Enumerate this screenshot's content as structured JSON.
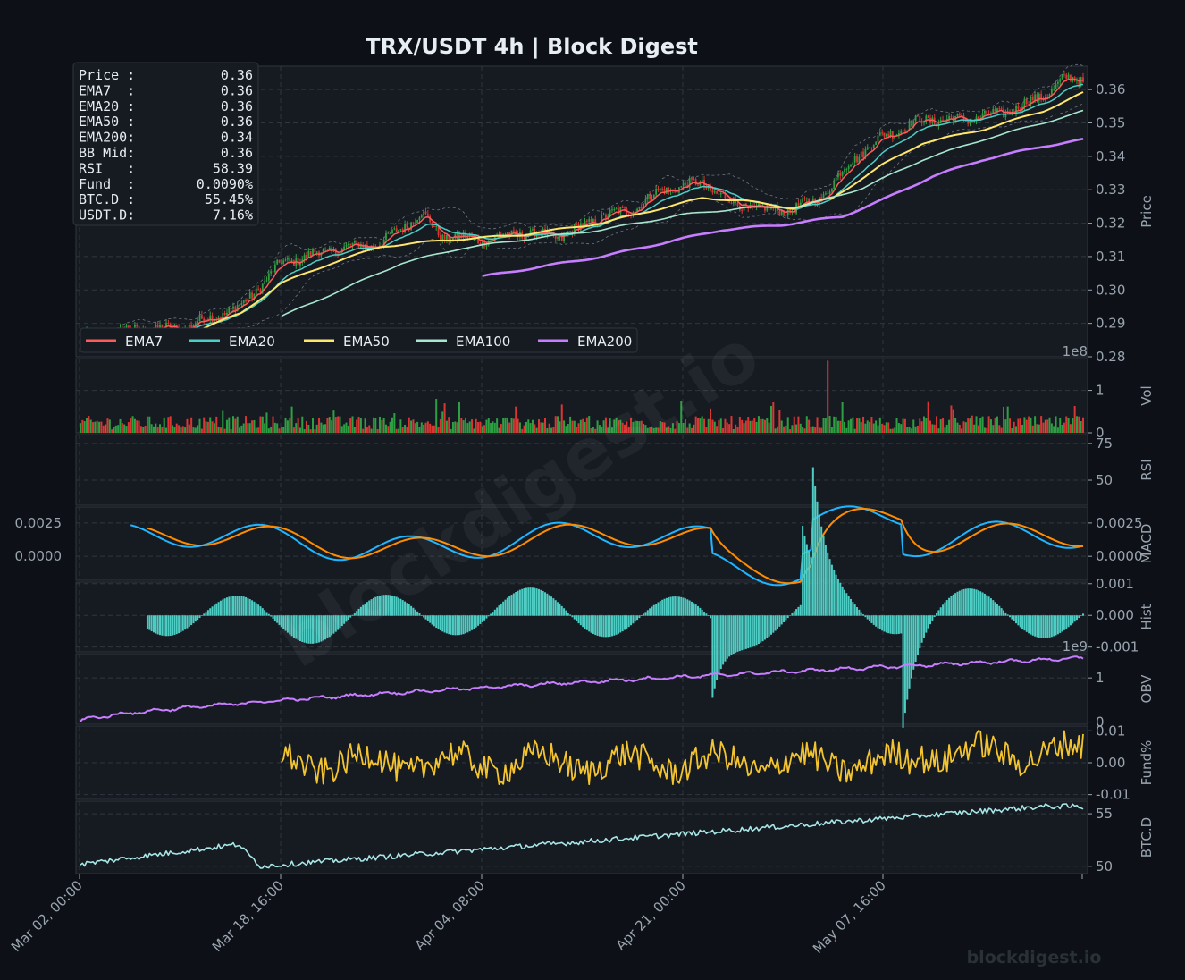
{
  "title": "TRX/USDT  4h  |  Block Digest",
  "watermark_diagonal": "blockdigest.io",
  "watermark_corner": "blockdigest.io",
  "colors": {
    "background": "#0d1117",
    "panel": "#161b22",
    "grid": "#30363d",
    "ema7": "#ff5a5a",
    "ema20": "#4ecdc4",
    "ema50": "#ffe66d",
    "ema100": "#a8e6cf",
    "ema200": "#c77dff",
    "up": "#2ea043",
    "down": "#da3633",
    "rsi": "#f4c430",
    "macd": "#1fb6ff",
    "signal": "#ff8c00",
    "hist": "#4ecdc4",
    "obv": "#c77dff",
    "fund": "#f4c430",
    "btcd": "#a8e6e6"
  },
  "info_box": [
    {
      "label": "Price :",
      "value": "0.36"
    },
    {
      "label": "EMA7  :",
      "value": "0.36"
    },
    {
      "label": "EMA20 :",
      "value": "0.36"
    },
    {
      "label": "EMA50 :",
      "value": "0.36"
    },
    {
      "label": "EMA200:",
      "value": "0.34"
    },
    {
      "label": "BB Mid:",
      "value": "0.36"
    },
    {
      "label": "RSI   :",
      "value": "58.39"
    },
    {
      "label": "Fund  :",
      "value": "0.0090%"
    },
    {
      "label": "BTC.D :",
      "value": "55.45%"
    },
    {
      "label": "USDT.D:",
      "value": "7.16%"
    }
  ],
  "legend": [
    {
      "label": "EMA7",
      "color": "#ff5a5a"
    },
    {
      "label": "EMA20",
      "color": "#4ecdc4"
    },
    {
      "label": "EMA50",
      "color": "#ffe66d"
    },
    {
      "label": "EMA100",
      "color": "#a8e6cf"
    },
    {
      "label": "EMA200",
      "color": "#c77dff"
    }
  ],
  "x_ticks": [
    "Mar 02, 00:00",
    "Mar 18, 16:00",
    "Apr 04, 08:00",
    "Apr 21, 00:00",
    "May 07, 16:00"
  ],
  "chart_data": [
    {
      "panel": "Price",
      "type": "candlestick",
      "ylabel": "Price",
      "ylim": [
        0.28,
        0.367
      ],
      "yticks": [
        "0.28",
        "0.29",
        "0.30",
        "0.31",
        "0.32",
        "0.33",
        "0.34",
        "0.35",
        "0.36"
      ],
      "x_range": [
        "Mar 02, 00:00",
        "May 22"
      ],
      "close_path": [
        [
          0,
          0.2855
        ],
        [
          0.05,
          0.288
        ],
        [
          0.1,
          0.2885
        ],
        [
          0.16,
          0.295
        ],
        [
          0.2,
          0.308
        ],
        [
          0.25,
          0.312
        ],
        [
          0.3,
          0.314
        ],
        [
          0.34,
          0.323
        ],
        [
          0.36,
          0.316
        ],
        [
          0.4,
          0.315
        ],
        [
          0.44,
          0.317
        ],
        [
          0.48,
          0.316
        ],
        [
          0.52,
          0.322
        ],
        [
          0.55,
          0.324
        ],
        [
          0.58,
          0.33
        ],
        [
          0.62,
          0.332
        ],
        [
          0.65,
          0.326
        ],
        [
          0.68,
          0.324
        ],
        [
          0.71,
          0.324
        ],
        [
          0.74,
          0.328
        ],
        [
          0.77,
          0.339
        ],
        [
          0.8,
          0.346
        ],
        [
          0.84,
          0.351
        ],
        [
          0.88,
          0.351
        ],
        [
          0.92,
          0.353
        ],
        [
          0.96,
          0.358
        ],
        [
          0.98,
          0.363
        ],
        [
          1.0,
          0.363
        ]
      ],
      "ema50_path": [
        [
          0.1,
          0.286
        ],
        [
          0.16,
          0.293
        ],
        [
          0.2,
          0.302
        ],
        [
          0.25,
          0.308
        ],
        [
          0.3,
          0.313
        ],
        [
          0.36,
          0.3148
        ],
        [
          0.44,
          0.3165
        ],
        [
          0.52,
          0.32
        ],
        [
          0.58,
          0.3245
        ],
        [
          0.62,
          0.3275
        ],
        [
          0.66,
          0.3268
        ],
        [
          0.71,
          0.3245
        ],
        [
          0.75,
          0.3275
        ],
        [
          0.8,
          0.3375
        ],
        [
          0.84,
          0.344
        ],
        [
          0.9,
          0.348
        ],
        [
          0.96,
          0.3535
        ],
        [
          1.0,
          0.359
        ]
      ],
      "ema100_path": [
        [
          0.2,
          0.292
        ],
        [
          0.26,
          0.3
        ],
        [
          0.32,
          0.308
        ],
        [
          0.38,
          0.3125
        ],
        [
          0.44,
          0.315
        ],
        [
          0.52,
          0.318
        ],
        [
          0.6,
          0.3225
        ],
        [
          0.66,
          0.3245
        ],
        [
          0.72,
          0.325
        ],
        [
          0.78,
          0.3305
        ],
        [
          0.84,
          0.339
        ],
        [
          0.9,
          0.345
        ],
        [
          0.96,
          0.35
        ],
        [
          1.0,
          0.3535
        ]
      ],
      "ema200_path": [
        [
          0.4,
          0.304
        ],
        [
          0.46,
          0.307
        ],
        [
          0.52,
          0.31
        ],
        [
          0.58,
          0.314
        ],
        [
          0.64,
          0.318
        ],
        [
          0.7,
          0.3195
        ],
        [
          0.76,
          0.322
        ],
        [
          0.8,
          0.327
        ],
        [
          0.85,
          0.334
        ],
        [
          0.9,
          0.339
        ],
        [
          0.96,
          0.343
        ],
        [
          1.0,
          0.345
        ]
      ]
    },
    {
      "panel": "Vol",
      "type": "bar",
      "ylabel": "Vol",
      "scale_label": "1e8",
      "yticks": [
        "0",
        "1"
      ],
      "ylim": [
        0,
        1.75
      ],
      "spike_at": 0.745,
      "spike_value": 1.7
    },
    {
      "panel": "RSI",
      "type": "line",
      "ylabel": "RSI",
      "yticks": [
        "50",
        "75"
      ],
      "ylim": [
        33,
        81
      ],
      "last": 58.39
    },
    {
      "panel": "MACD",
      "type": "line",
      "ylabel": "MACD",
      "yticks": [
        "0.0000",
        "0.0025"
      ],
      "left_yticks": [
        "0.0000",
        "0.0025"
      ],
      "ylim": [
        -0.0018,
        0.0037
      ],
      "series": [
        {
          "name": "MACD"
        },
        {
          "name": "Signal"
        }
      ]
    },
    {
      "panel": "Hist",
      "type": "bar",
      "ylabel": "Hist",
      "yticks": [
        "-0.001",
        "0.000",
        "0.001"
      ],
      "ylim": [
        -0.00115,
        0.00105
      ]
    },
    {
      "panel": "OBV",
      "type": "line",
      "ylabel": "OBV",
      "scale_label": "1e9",
      "yticks": [
        "0",
        "1"
      ],
      "ylim": [
        -0.05,
        1.55
      ]
    },
    {
      "panel": "Fund%",
      "type": "line",
      "ylabel": "Fund%",
      "yticks": [
        "-0.01",
        "0.00",
        "0.01"
      ],
      "ylim": [
        -0.0115,
        0.0115
      ],
      "last": 0.009
    },
    {
      "panel": "BTC.D",
      "type": "line",
      "ylabel": "BTC.D",
      "yticks": [
        "50",
        "55"
      ],
      "ylim": [
        49.3,
        56.2
      ],
      "last": 55.45
    }
  ]
}
